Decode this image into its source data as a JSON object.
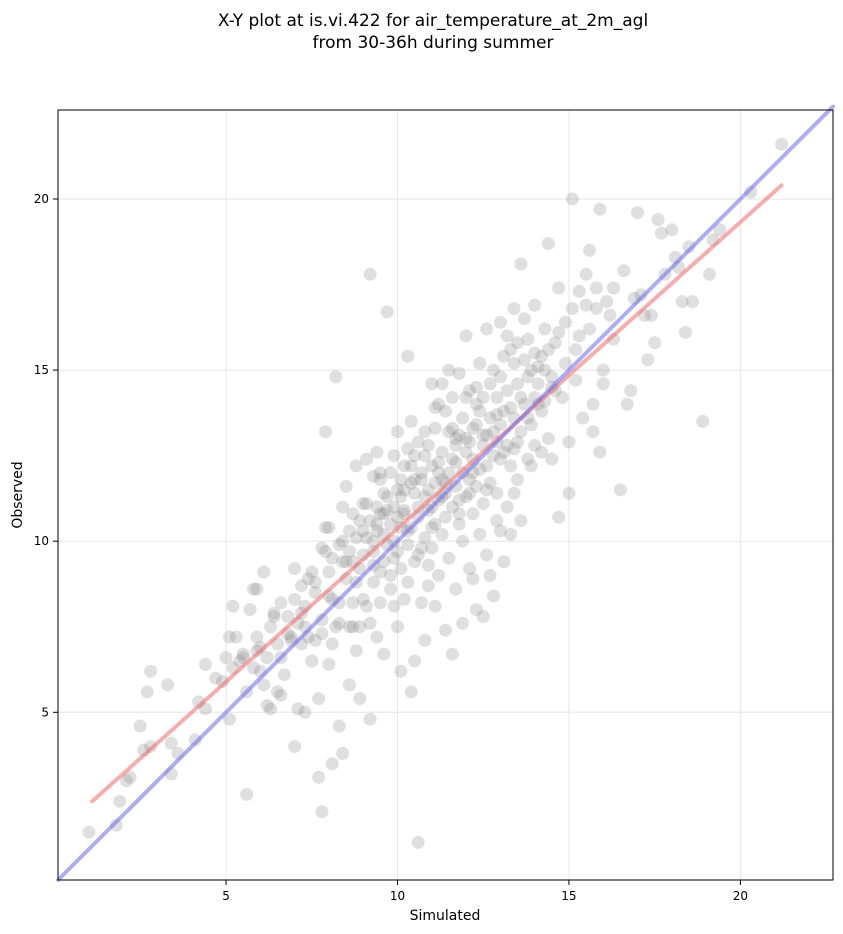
{
  "chart_data": {
    "type": "scatter",
    "title": [
      "X-Y plot at is.vi.422 for air_temperature_at_2m_agl",
      "from 30-36h during summer"
    ],
    "xlabel": "Simulated",
    "ylabel": "Observed",
    "xlim": [
      0.1,
      22.7
    ],
    "ylim": [
      0.1,
      22.6
    ],
    "xticks": [
      5,
      10,
      15,
      20
    ],
    "yticks": [
      5,
      10,
      15,
      20
    ],
    "grid": true,
    "point_color": "#808080",
    "lines": {
      "identity": {
        "color": "#6a6aee",
        "from": [
          0.1,
          0.1
        ],
        "to": [
          22.7,
          22.7
        ]
      },
      "regression": {
        "color": "#ee6a6a",
        "from": [
          1.1,
          2.4
        ],
        "to": [
          21.2,
          20.4
        ]
      }
    },
    "points": [
      [
        1.0,
        1.5
      ],
      [
        1.8,
        1.7
      ],
      [
        1.9,
        2.4
      ],
      [
        2.1,
        3.0
      ],
      [
        2.2,
        3.1
      ],
      [
        2.5,
        4.6
      ],
      [
        2.6,
        3.9
      ],
      [
        2.7,
        5.6
      ],
      [
        2.8,
        6.2
      ],
      [
        2.8,
        4.0
      ],
      [
        3.3,
        5.8
      ],
      [
        3.4,
        4.1
      ],
      [
        3.4,
        3.2
      ],
      [
        3.6,
        3.8
      ],
      [
        4.1,
        4.2
      ],
      [
        4.2,
        5.3
      ],
      [
        4.4,
        5.1
      ],
      [
        4.4,
        6.4
      ],
      [
        4.7,
        6.0
      ],
      [
        4.9,
        5.9
      ],
      [
        5.0,
        6.6
      ],
      [
        5.1,
        7.2
      ],
      [
        5.1,
        4.8
      ],
      [
        5.2,
        8.1
      ],
      [
        5.2,
        6.3
      ],
      [
        5.3,
        7.2
      ],
      [
        5.4,
        6.5
      ],
      [
        5.5,
        6.7
      ],
      [
        5.5,
        6.6
      ],
      [
        5.6,
        5.6
      ],
      [
        5.6,
        2.6
      ],
      [
        5.7,
        8.0
      ],
      [
        5.8,
        8.6
      ],
      [
        5.9,
        8.6
      ],
      [
        5.9,
        7.2
      ],
      [
        5.9,
        6.8
      ],
      [
        6.0,
        6.2
      ],
      [
        6.0,
        6.9
      ],
      [
        6.1,
        9.1
      ],
      [
        6.1,
        5.8
      ],
      [
        6.2,
        5.2
      ],
      [
        6.2,
        6.6
      ],
      [
        6.3,
        5.1
      ],
      [
        6.4,
        7.8
      ],
      [
        6.4,
        7.9
      ],
      [
        6.5,
        5.6
      ],
      [
        6.6,
        8.2
      ],
      [
        6.6,
        5.5
      ],
      [
        6.6,
        6.6
      ],
      [
        6.7,
        6.1
      ],
      [
        6.8,
        7.8
      ],
      [
        6.9,
        7.2
      ],
      [
        6.9,
        7.1
      ],
      [
        7.0,
        9.2
      ],
      [
        7.0,
        8.3
      ],
      [
        7.0,
        4.0
      ],
      [
        7.1,
        5.1
      ],
      [
        7.2,
        8.7
      ],
      [
        7.2,
        7.9
      ],
      [
        7.2,
        7.0
      ],
      [
        7.3,
        7.5
      ],
      [
        7.3,
        5.0
      ],
      [
        7.4,
        8.9
      ],
      [
        7.4,
        7.2
      ],
      [
        7.5,
        9.1
      ],
      [
        7.5,
        6.5
      ],
      [
        7.6,
        7.1
      ],
      [
        7.6,
        8.8
      ],
      [
        7.7,
        5.4
      ],
      [
        7.7,
        3.1
      ],
      [
        7.8,
        9.8
      ],
      [
        7.8,
        7.7
      ],
      [
        7.8,
        7.3
      ],
      [
        7.8,
        2.1
      ],
      [
        7.9,
        9.7
      ],
      [
        7.9,
        10.4
      ],
      [
        7.9,
        13.2
      ],
      [
        8.0,
        8.4
      ],
      [
        8.0,
        10.4
      ],
      [
        8.0,
        6.4
      ],
      [
        8.1,
        9.5
      ],
      [
        8.1,
        8.3
      ],
      [
        8.1,
        7.0
      ],
      [
        8.1,
        3.5
      ],
      [
        8.2,
        7.5
      ],
      [
        8.2,
        14.8
      ],
      [
        8.3,
        8.2
      ],
      [
        8.3,
        7.6
      ],
      [
        8.3,
        4.6
      ],
      [
        8.4,
        9.4
      ],
      [
        8.4,
        10.0
      ],
      [
        8.4,
        3.8
      ],
      [
        8.5,
        9.4
      ],
      [
        8.5,
        11.6
      ],
      [
        8.5,
        8.9
      ],
      [
        8.6,
        9.7
      ],
      [
        8.6,
        7.5
      ],
      [
        8.6,
        5.8
      ],
      [
        8.7,
        10.8
      ],
      [
        8.7,
        8.2
      ],
      [
        8.7,
        7.5
      ],
      [
        8.8,
        12.2
      ],
      [
        8.8,
        10.1
      ],
      [
        8.8,
        8.8
      ],
      [
        8.8,
        6.8
      ],
      [
        8.9,
        9.2
      ],
      [
        8.9,
        7.5
      ],
      [
        8.9,
        5.4
      ],
      [
        9.0,
        10.3
      ],
      [
        9.0,
        9.6
      ],
      [
        9.0,
        11.1
      ],
      [
        9.0,
        8.3
      ],
      [
        9.1,
        12.4
      ],
      [
        9.1,
        11.1
      ],
      [
        9.1,
        10.1
      ],
      [
        9.1,
        8.1
      ],
      [
        9.2,
        17.8
      ],
      [
        9.2,
        10.6
      ],
      [
        9.2,
        7.6
      ],
      [
        9.2,
        4.8
      ],
      [
        9.3,
        9.7
      ],
      [
        9.3,
        9.3
      ],
      [
        9.3,
        11.9
      ],
      [
        9.3,
        8.8
      ],
      [
        9.4,
        12.6
      ],
      [
        9.4,
        11.0
      ],
      [
        9.4,
        10.3
      ],
      [
        9.4,
        7.2
      ],
      [
        9.5,
        10.8
      ],
      [
        9.5,
        9.1
      ],
      [
        9.5,
        12.0
      ],
      [
        9.5,
        8.2
      ],
      [
        9.6,
        11.4
      ],
      [
        9.6,
        10.2
      ],
      [
        9.6,
        9.4
      ],
      [
        9.6,
        6.7
      ],
      [
        9.7,
        16.7
      ],
      [
        9.7,
        11.3
      ],
      [
        9.7,
        10.9
      ],
      [
        9.8,
        10.5
      ],
      [
        9.8,
        9.0
      ],
      [
        9.8,
        12.0
      ],
      [
        9.8,
        8.6
      ],
      [
        9.9,
        11.0
      ],
      [
        9.9,
        12.5
      ],
      [
        9.9,
        10.0
      ],
      [
        9.9,
        8.1
      ],
      [
        10.0,
        13.2
      ],
      [
        10.0,
        10.7
      ],
      [
        10.0,
        9.7
      ],
      [
        10.0,
        7.5
      ],
      [
        10.1,
        11.8
      ],
      [
        10.1,
        10.4
      ],
      [
        10.1,
        9.2
      ],
      [
        10.1,
        6.2
      ],
      [
        10.2,
        12.2
      ],
      [
        10.2,
        11.5
      ],
      [
        10.2,
        10.9
      ],
      [
        10.2,
        8.3
      ],
      [
        10.3,
        15.4
      ],
      [
        10.3,
        10.3
      ],
      [
        10.3,
        9.9
      ],
      [
        10.3,
        8.8
      ],
      [
        10.4,
        13.5
      ],
      [
        10.4,
        11.7
      ],
      [
        10.4,
        10.4
      ],
      [
        10.4,
        5.6
      ],
      [
        10.5,
        12.5
      ],
      [
        10.5,
        11.4
      ],
      [
        10.5,
        9.4
      ],
      [
        10.5,
        6.5
      ],
      [
        10.6,
        12.9
      ],
      [
        10.6,
        11.0
      ],
      [
        10.6,
        10.7
      ],
      [
        10.6,
        1.2
      ],
      [
        10.7,
        12.0
      ],
      [
        10.7,
        11.8
      ],
      [
        10.7,
        9.8
      ],
      [
        10.7,
        8.2
      ],
      [
        10.8,
        13.2
      ],
      [
        10.8,
        11.3
      ],
      [
        10.8,
        10.1
      ],
      [
        10.8,
        7.1
      ],
      [
        10.9,
        12.8
      ],
      [
        10.9,
        11.5
      ],
      [
        10.9,
        9.3
      ],
      [
        10.9,
        8.7
      ],
      [
        11.0,
        14.6
      ],
      [
        11.0,
        12.2
      ],
      [
        11.0,
        11.0
      ],
      [
        11.0,
        9.8
      ],
      [
        11.1,
        13.3
      ],
      [
        11.1,
        11.7
      ],
      [
        11.1,
        10.5
      ],
      [
        11.1,
        8.1
      ],
      [
        11.2,
        14.0
      ],
      [
        11.2,
        12.0
      ],
      [
        11.2,
        11.2
      ],
      [
        11.2,
        9.0
      ],
      [
        11.3,
        14.6
      ],
      [
        11.3,
        12.6
      ],
      [
        11.3,
        11.8
      ],
      [
        11.3,
        10.2
      ],
      [
        11.4,
        13.8
      ],
      [
        11.4,
        11.4
      ],
      [
        11.4,
        10.7
      ],
      [
        11.4,
        7.4
      ],
      [
        11.5,
        15.0
      ],
      [
        11.5,
        13.2
      ],
      [
        11.5,
        12.0
      ],
      [
        11.5,
        9.5
      ],
      [
        11.6,
        14.2
      ],
      [
        11.6,
        12.4
      ],
      [
        11.6,
        11.0
      ],
      [
        11.6,
        6.7
      ],
      [
        11.7,
        13.0
      ],
      [
        11.7,
        12.8
      ],
      [
        11.7,
        11.6
      ],
      [
        11.7,
        8.6
      ],
      [
        11.8,
        14.9
      ],
      [
        11.8,
        13.1
      ],
      [
        11.8,
        11.2
      ],
      [
        11.8,
        10.5
      ],
      [
        11.9,
        13.6
      ],
      [
        11.9,
        12.0
      ],
      [
        11.9,
        10.0
      ],
      [
        11.9,
        7.6
      ],
      [
        12.0,
        16.0
      ],
      [
        12.0,
        14.2
      ],
      [
        12.0,
        12.6
      ],
      [
        12.0,
        11.3
      ],
      [
        12.1,
        14.4
      ],
      [
        12.1,
        12.9
      ],
      [
        12.1,
        11.8
      ],
      [
        12.1,
        9.2
      ],
      [
        12.2,
        13.3
      ],
      [
        12.2,
        12.4
      ],
      [
        12.2,
        10.8
      ],
      [
        12.2,
        8.9
      ],
      [
        12.3,
        14.0
      ],
      [
        12.3,
        13.4
      ],
      [
        12.3,
        11.6
      ],
      [
        12.3,
        8.0
      ],
      [
        12.4,
        15.2
      ],
      [
        12.4,
        13.8
      ],
      [
        12.4,
        12.1
      ],
      [
        12.4,
        10.2
      ],
      [
        12.5,
        14.2
      ],
      [
        12.5,
        12.8
      ],
      [
        12.5,
        11.1
      ],
      [
        12.5,
        7.8
      ],
      [
        12.6,
        16.2
      ],
      [
        12.6,
        13.1
      ],
      [
        12.6,
        12.2
      ],
      [
        12.6,
        9.6
      ],
      [
        12.7,
        14.6
      ],
      [
        12.7,
        13.6
      ],
      [
        12.7,
        11.7
      ],
      [
        12.7,
        9.0
      ],
      [
        12.8,
        15.0
      ],
      [
        12.8,
        13.2
      ],
      [
        12.8,
        12.5
      ],
      [
        12.8,
        8.4
      ],
      [
        12.9,
        14.2
      ],
      [
        12.9,
        12.9
      ],
      [
        12.9,
        11.4
      ],
      [
        12.9,
        10.6
      ],
      [
        13.0,
        16.4
      ],
      [
        13.0,
        14.8
      ],
      [
        13.0,
        13.4
      ],
      [
        13.0,
        10.3
      ],
      [
        13.1,
        15.4
      ],
      [
        13.1,
        13.8
      ],
      [
        13.1,
        12.6
      ],
      [
        13.1,
        9.4
      ],
      [
        13.2,
        16.0
      ],
      [
        13.2,
        14.4
      ],
      [
        13.2,
        12.8
      ],
      [
        13.2,
        11.0
      ],
      [
        13.3,
        15.6
      ],
      [
        13.3,
        13.9
      ],
      [
        13.3,
        12.2
      ],
      [
        13.3,
        10.2
      ],
      [
        13.4,
        16.8
      ],
      [
        13.4,
        15.2
      ],
      [
        13.4,
        13.6
      ],
      [
        13.4,
        11.4
      ],
      [
        13.5,
        15.8
      ],
      [
        13.5,
        14.6
      ],
      [
        13.5,
        12.9
      ],
      [
        13.5,
        11.8
      ],
      [
        13.6,
        18.1
      ],
      [
        13.6,
        14.2
      ],
      [
        13.6,
        13.2
      ],
      [
        13.6,
        10.6
      ],
      [
        13.7,
        16.5
      ],
      [
        13.7,
        15.3
      ],
      [
        13.7,
        14.0
      ],
      [
        13.8,
        12.4
      ],
      [
        13.8,
        15.9
      ],
      [
        13.8,
        14.8
      ],
      [
        13.9,
        13.4
      ],
      [
        13.9,
        12.2
      ],
      [
        14.0,
        16.9
      ],
      [
        14.0,
        15.5
      ],
      [
        14.0,
        14.2
      ],
      [
        14.0,
        12.8
      ],
      [
        14.1,
        15.1
      ],
      [
        14.1,
        14.6
      ],
      [
        14.2,
        13.8
      ],
      [
        14.2,
        12.6
      ],
      [
        14.3,
        16.2
      ],
      [
        14.3,
        15.0
      ],
      [
        14.3,
        14.1
      ],
      [
        14.4,
        18.7
      ],
      [
        14.4,
        15.6
      ],
      [
        14.4,
        13.0
      ],
      [
        14.5,
        14.8
      ],
      [
        14.5,
        12.4
      ],
      [
        14.6,
        15.8
      ],
      [
        14.6,
        14.4
      ],
      [
        14.7,
        17.4
      ],
      [
        14.7,
        16.1
      ],
      [
        14.7,
        10.7
      ],
      [
        14.8,
        14.2
      ],
      [
        14.9,
        16.4
      ],
      [
        14.9,
        15.2
      ],
      [
        15.0,
        12.9
      ],
      [
        15.0,
        11.4
      ],
      [
        15.1,
        20.0
      ],
      [
        15.1,
        16.8
      ],
      [
        15.2,
        15.6
      ],
      [
        15.2,
        14.7
      ],
      [
        15.3,
        17.3
      ],
      [
        15.3,
        16.0
      ],
      [
        15.4,
        13.6
      ],
      [
        15.5,
        17.8
      ],
      [
        15.5,
        16.9
      ],
      [
        15.6,
        18.5
      ],
      [
        15.6,
        16.2
      ],
      [
        15.7,
        14.0
      ],
      [
        15.7,
        13.2
      ],
      [
        15.8,
        17.4
      ],
      [
        15.8,
        16.8
      ],
      [
        15.9,
        19.7
      ],
      [
        15.9,
        12.6
      ],
      [
        16.0,
        15.0
      ],
      [
        16.0,
        14.6
      ],
      [
        16.1,
        17.0
      ],
      [
        16.2,
        16.6
      ],
      [
        16.3,
        17.4
      ],
      [
        16.3,
        15.9
      ],
      [
        16.5,
        11.5
      ],
      [
        16.6,
        17.9
      ],
      [
        16.7,
        14.0
      ],
      [
        16.8,
        14.4
      ],
      [
        16.9,
        17.1
      ],
      [
        17.0,
        19.6
      ],
      [
        17.1,
        17.2
      ],
      [
        17.2,
        16.6
      ],
      [
        17.3,
        15.3
      ],
      [
        17.4,
        16.6
      ],
      [
        17.5,
        15.8
      ],
      [
        17.6,
        19.4
      ],
      [
        17.7,
        19.0
      ],
      [
        17.8,
        17.8
      ],
      [
        18.0,
        19.1
      ],
      [
        18.1,
        18.3
      ],
      [
        18.2,
        18.0
      ],
      [
        18.3,
        17.0
      ],
      [
        18.4,
        16.1
      ],
      [
        18.5,
        18.6
      ],
      [
        18.6,
        17.0
      ],
      [
        18.9,
        13.5
      ],
      [
        19.1,
        17.8
      ],
      [
        19.2,
        18.8
      ],
      [
        19.4,
        19.1
      ],
      [
        20.3,
        20.2
      ],
      [
        21.2,
        21.6
      ],
      [
        9.9,
        9.5
      ],
      [
        10.2,
        10.8
      ],
      [
        10.6,
        9.6
      ],
      [
        11.0,
        10.4
      ],
      [
        11.4,
        11.7
      ],
      [
        11.8,
        10.8
      ],
      [
        12.2,
        12.0
      ],
      [
        12.6,
        11.5
      ],
      [
        13.0,
        12.4
      ],
      [
        13.4,
        12.7
      ],
      [
        9.4,
        10.5
      ],
      [
        9.7,
        9.9
      ],
      [
        10.1,
        11.3
      ],
      [
        10.5,
        11.8
      ],
      [
        10.9,
        10.9
      ],
      [
        11.3,
        11.3
      ],
      [
        11.7,
        12.3
      ],
      [
        12.1,
        11.4
      ],
      [
        12.5,
        13.1
      ],
      [
        12.9,
        13.7
      ],
      [
        8.7,
        9.4
      ],
      [
        8.9,
        10.6
      ],
      [
        9.3,
        10.0
      ],
      [
        9.6,
        10.8
      ],
      [
        10.0,
        11.5
      ],
      [
        10.4,
        12.2
      ],
      [
        10.8,
        12.5
      ],
      [
        11.2,
        12.3
      ],
      [
        11.6,
        13.3
      ],
      [
        12.0,
        13.0
      ],
      [
        7.3,
        8.1
      ],
      [
        7.6,
        8.5
      ],
      [
        8.0,
        9.1
      ],
      [
        8.3,
        9.9
      ],
      [
        8.6,
        10.3
      ],
      [
        6.8,
        7.3
      ],
      [
        7.1,
        7.6
      ],
      [
        6.3,
        7.5
      ],
      [
        6.5,
        7.0
      ],
      [
        5.8,
        6.3
      ],
      [
        13.8,
        13.6
      ],
      [
        14.1,
        14.0
      ],
      [
        14.5,
        14.5
      ],
      [
        14.2,
        15.4
      ],
      [
        13.9,
        15.0
      ],
      [
        12.3,
        14.5
      ],
      [
        11.1,
        13.9
      ],
      [
        10.3,
        12.7
      ],
      [
        9.5,
        11.8
      ],
      [
        8.4,
        11.0
      ]
    ]
  }
}
